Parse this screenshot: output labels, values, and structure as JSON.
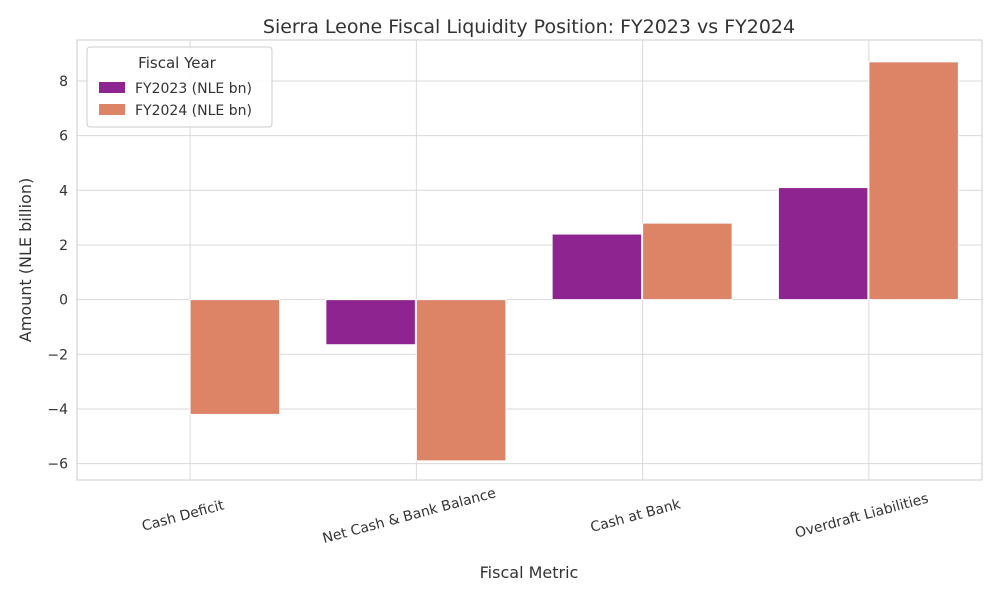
{
  "chart_data": {
    "type": "bar",
    "title": "Sierra Leone Fiscal Liquidity Position: FY2023 vs FY2024",
    "xlabel": "Fiscal Metric",
    "ylabel": "Amount (NLE billion)",
    "categories": [
      "Cash Deficit",
      "Net Cash & Bank Balance",
      "Cash at Bank",
      "Overdraft Liabilities"
    ],
    "series": [
      {
        "name": "FY2023 (NLE bn)",
        "color": "#8e2490",
        "values": [
          0,
          -1.65,
          2.4,
          4.1
        ]
      },
      {
        "name": "FY2024 (NLE bn)",
        "color": "#dd8366",
        "values": [
          -4.2,
          -5.9,
          2.8,
          8.7
        ]
      }
    ],
    "ylim": [
      -6.6,
      9.5
    ],
    "yticks": [
      -6,
      -4,
      -2,
      0,
      2,
      4,
      6,
      8
    ],
    "ytick_labels": [
      "−6",
      "−4",
      "−2",
      "0",
      "2",
      "4",
      "6",
      "8"
    ],
    "grid": true,
    "legend_title": "Fiscal Year",
    "legend_position": "top-left"
  }
}
